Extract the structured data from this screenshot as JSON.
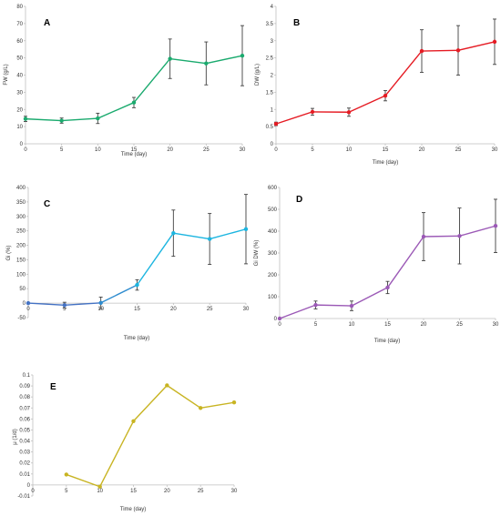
{
  "chart_data": [
    {
      "id": "A",
      "type": "line",
      "panel_label": "A",
      "title": "",
      "xlabel": "Time (day)",
      "ylabel": "FW (g/L)",
      "x": [
        0,
        5,
        10,
        15,
        20,
        25,
        30
      ],
      "xticks": [
        "0",
        "5",
        "10",
        "15",
        "20",
        "25",
        "30"
      ],
      "xlim": [
        0,
        30
      ],
      "ylim": [
        0,
        80
      ],
      "yticks": [
        "0",
        "10",
        "20",
        "30",
        "40",
        "50",
        "60",
        "70",
        "80"
      ],
      "series": [
        {
          "color": "#1aaa6e",
          "values": [
            14.5,
            13.5,
            14.8,
            24,
            49.5,
            46.8,
            51.3
          ],
          "errors": [
            1.5,
            1.5,
            3,
            3,
            11.5,
            12.5,
            17.5
          ]
        }
      ]
    },
    {
      "id": "B",
      "type": "line",
      "panel_label": "B",
      "title": "",
      "xlabel": "Time (day)",
      "ylabel": "DW (g/L)",
      "x": [
        0,
        5,
        10,
        15,
        20,
        25,
        30
      ],
      "xticks": [
        "0",
        "5",
        "10",
        "15",
        "20",
        "25",
        "30"
      ],
      "xlim": [
        0,
        30
      ],
      "ylim": [
        0,
        4
      ],
      "yticks": [
        "0",
        "0.5",
        "1",
        "1.5",
        "2",
        "2.5",
        "3",
        "3.5",
        "4"
      ],
      "series": [
        {
          "color": "#e51b23",
          "values": [
            0.58,
            0.93,
            0.92,
            1.4,
            2.7,
            2.72,
            2.97
          ],
          "errors": [
            0.05,
            0.1,
            0.12,
            0.15,
            0.62,
            0.72,
            0.66
          ]
        }
      ]
    },
    {
      "id": "C",
      "type": "line",
      "panel_label": "C",
      "title": "",
      "xlabel": "Time (day)",
      "ylabel": "Gi (%)",
      "x": [
        0,
        5,
        10,
        15,
        20,
        25,
        30
      ],
      "xticks": [
        "0",
        "5",
        "10",
        "15",
        "20",
        "25",
        "30"
      ],
      "xlim": [
        0,
        30
      ],
      "ylim": [
        -50,
        400
      ],
      "yticks": [
        "-50",
        "0",
        "50",
        "100",
        "150",
        "200",
        "250",
        "300",
        "350",
        "400"
      ],
      "series": [
        {
          "color": "#1cb5e0",
          "colors_by_segment": [
            "#4472c4",
            "#4472c4",
            "#2e8ccf",
            "#1cb5e0",
            "#1cb5e0",
            "#1cb5e0"
          ],
          "values": [
            0,
            -7,
            1,
            63,
            242,
            222,
            256
          ],
          "errors": [
            0,
            10,
            20,
            18,
            80,
            88,
            120
          ]
        }
      ]
    },
    {
      "id": "D",
      "type": "line",
      "panel_label": "D",
      "title": "",
      "xlabel": "Time (day)",
      "ylabel": "Gi DW (%)",
      "x": [
        0,
        5,
        10,
        15,
        20,
        25,
        30
      ],
      "xticks": [
        "0",
        "5",
        "10",
        "15",
        "20",
        "25",
        "30"
      ],
      "xlim": [
        0,
        30
      ],
      "ylim": [
        0,
        600
      ],
      "yticks": [
        "0",
        "100",
        "200",
        "300",
        "400",
        "500",
        "600"
      ],
      "series": [
        {
          "color": "#9b59b6",
          "values": [
            0,
            62,
            58,
            142,
            375,
            378,
            424
          ],
          "errors": [
            0,
            18,
            22,
            28,
            110,
            128,
            122
          ]
        }
      ]
    },
    {
      "id": "E",
      "type": "line",
      "panel_label": "E",
      "title": "",
      "xlabel": "Time (day)",
      "ylabel": "μ (1/d)",
      "x": [
        5,
        10,
        15,
        20,
        25,
        30
      ],
      "xticks": [
        "0",
        "5",
        "10",
        "15",
        "20",
        "25",
        "30"
      ],
      "xlim": [
        0,
        30
      ],
      "ylim": [
        -0.01,
        0.1
      ],
      "yticks": [
        "-0.01",
        "0",
        "0.01",
        "0.02",
        "0.03",
        "0.04",
        "0.05",
        "0.06",
        "0.07",
        "0.08",
        "0.09",
        "0.1"
      ],
      "series": [
        {
          "color": "#c8b422",
          "values": [
            0.0095,
            -0.0015,
            0.058,
            0.0905,
            0.07,
            0.075
          ]
        }
      ]
    }
  ]
}
